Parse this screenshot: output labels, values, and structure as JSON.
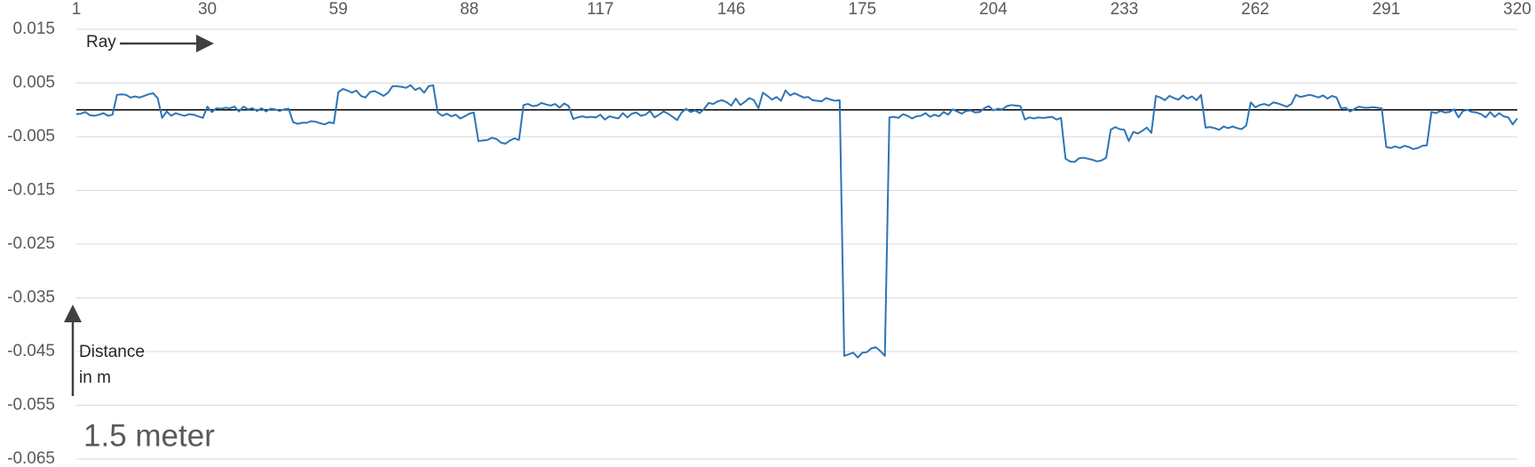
{
  "chart_data": {
    "type": "line",
    "annotations": [
      "Ray",
      "Distance",
      "in m",
      "1.5 meter"
    ],
    "color": "#2e75b6",
    "grid": true,
    "xlim": [
      1,
      320
    ],
    "xticks": [
      1,
      30,
      59,
      88,
      117,
      146,
      175,
      204,
      233,
      262,
      291,
      320
    ],
    "ylim": [
      -0.065,
      0.015
    ],
    "yticks": [
      0.015,
      0.005,
      -0.005,
      -0.015,
      -0.025,
      -0.035,
      -0.045,
      -0.055,
      -0.065
    ],
    "x": [
      1,
      2,
      3,
      4,
      5,
      6,
      7,
      8,
      9,
      10,
      11,
      12,
      13,
      14,
      15,
      16,
      17,
      18,
      19,
      20,
      21,
      22,
      23,
      24,
      25,
      26,
      27,
      28,
      29,
      30,
      31,
      32,
      33,
      34,
      35,
      36,
      37,
      38,
      39,
      40,
      41,
      42,
      43,
      44,
      45,
      46,
      47,
      48,
      49,
      50,
      51,
      52,
      53,
      54,
      55,
      56,
      57,
      58,
      59,
      60,
      61,
      62,
      63,
      64,
      65,
      66,
      67,
      68,
      69,
      70,
      71,
      72,
      73,
      74,
      75,
      76,
      77,
      78,
      79,
      80,
      81,
      82,
      83,
      84,
      85,
      86,
      87,
      88,
      89,
      90,
      91,
      92,
      93,
      94,
      95,
      96,
      97,
      98,
      99,
      100,
      101,
      102,
      103,
      104,
      105,
      106,
      107,
      108,
      109,
      110,
      111,
      112,
      113,
      114,
      115,
      116,
      117,
      118,
      119,
      120,
      121,
      122,
      123,
      124,
      125,
      126,
      127,
      128,
      129,
      130,
      131,
      132,
      133,
      134,
      135,
      136,
      137,
      138,
      139,
      140,
      141,
      142,
      143,
      144,
      145,
      146,
      147,
      148,
      149,
      150,
      151,
      152,
      153,
      154,
      155,
      156,
      157,
      158,
      159,
      160,
      161,
      162,
      163,
      164,
      165,
      166,
      167,
      168,
      169,
      170,
      171,
      172,
      173,
      174,
      175,
      176,
      177,
      178,
      179,
      180,
      181,
      182,
      183,
      184,
      185,
      186,
      187,
      188,
      189,
      190,
      191,
      192,
      193,
      194,
      195,
      196,
      197,
      198,
      199,
      200,
      201,
      202,
      203,
      204,
      205,
      206,
      207,
      208,
      209,
      210,
      211,
      212,
      213,
      214,
      215,
      216,
      217,
      218,
      219,
      220,
      221,
      222,
      223,
      224,
      225,
      226,
      227,
      228,
      229,
      230,
      231,
      232,
      233,
      234,
      235,
      236,
      237,
      238,
      239,
      240,
      241,
      242,
      243,
      244,
      245,
      246,
      247,
      248,
      249,
      250,
      251,
      252,
      253,
      254,
      255,
      256,
      257,
      258,
      259,
      260,
      261,
      262,
      263,
      264,
      265,
      266,
      267,
      268,
      269,
      270,
      271,
      272,
      273,
      274,
      275,
      276,
      277,
      278,
      279,
      280,
      281,
      282,
      283,
      284,
      285,
      286,
      287,
      288,
      289,
      290,
      291,
      292,
      293,
      294,
      295,
      296,
      297,
      298,
      299,
      300,
      301,
      302,
      303,
      304,
      305,
      306,
      307,
      308,
      309,
      310,
      311,
      312,
      313,
      314,
      315,
      316,
      317,
      318,
      319,
      320
    ],
    "values": [
      -0.0008,
      -0.0007,
      -0.0004,
      -0.001,
      -0.0011,
      -0.0009,
      -0.0006,
      -0.0011,
      -0.0009,
      0.0028,
      0.0029,
      0.0028,
      0.0023,
      0.0025,
      0.0023,
      0.0026,
      0.0029,
      0.0031,
      0.0022,
      -0.0015,
      -0.0003,
      -0.0011,
      -0.0006,
      -0.0009,
      -0.0011,
      -0.0008,
      -0.0009,
      -0.0012,
      -0.0015,
      0.0006,
      -0.0004,
      0.0003,
      0.0002,
      0.0004,
      0.0003,
      0.0006,
      -0.0003,
      0.0006,
      0.0001,
      0.0003,
      -0.0002,
      0.0003,
      -0.0003,
      0.0002,
      0.0001,
      -0.0002,
      0.0001,
      0.0002,
      -0.0023,
      -0.0026,
      -0.0024,
      -0.0024,
      -0.0021,
      -0.0022,
      -0.0025,
      -0.0027,
      -0.0023,
      -0.0025,
      0.0033,
      0.0039,
      0.0036,
      0.0032,
      0.0036,
      0.0026,
      0.0023,
      0.0033,
      0.0035,
      0.0031,
      0.0026,
      0.0032,
      0.0044,
      0.0044,
      0.0043,
      0.0041,
      0.0046,
      0.0037,
      0.0041,
      0.0032,
      0.0044,
      0.0046,
      -0.0005,
      -0.0011,
      -0.0007,
      -0.0012,
      -0.0009,
      -0.0016,
      -0.0012,
      -0.0007,
      -0.0005,
      -0.0058,
      -0.0057,
      -0.0056,
      -0.0052,
      -0.0054,
      -0.0061,
      -0.0063,
      -0.0057,
      -0.0053,
      -0.0056,
      0.0009,
      0.0011,
      0.0007,
      0.0008,
      0.0013,
      0.001,
      0.0008,
      0.0011,
      0.0004,
      0.0012,
      0.0007,
      -0.0017,
      -0.0014,
      -0.0012,
      -0.0014,
      -0.0013,
      -0.0014,
      -0.0009,
      -0.0018,
      -0.0012,
      -0.0014,
      -0.0016,
      -0.0006,
      -0.0014,
      -0.0007,
      -0.0005,
      -0.0011,
      -0.0009,
      -0.0002,
      -0.0014,
      -0.0009,
      -0.0003,
      -0.0007,
      -0.0013,
      -0.0019,
      -0.0005,
      0.0002,
      -0.0004,
      -0.0001,
      -0.0006,
      0.0002,
      0.0013,
      0.0011,
      0.0016,
      0.0018,
      0.0014,
      0.0008,
      0.0021,
      0.0009,
      0.0015,
      0.0022,
      0.0018,
      0.0003,
      0.0032,
      0.0026,
      0.0019,
      0.0024,
      0.0017,
      0.0036,
      0.0027,
      0.0031,
      0.0027,
      0.0023,
      0.0024,
      0.0018,
      0.0017,
      0.0016,
      0.0022,
      0.0019,
      0.0017,
      0.0018,
      -0.0458,
      -0.0455,
      -0.0452,
      -0.0461,
      -0.0452,
      -0.0451,
      -0.0444,
      -0.0442,
      -0.0449,
      -0.0458,
      -0.0014,
      -0.0013,
      -0.0015,
      -0.0008,
      -0.0011,
      -0.0016,
      -0.0012,
      -0.0011,
      -0.0006,
      -0.0013,
      -0.0009,
      -0.0012,
      -0.0004,
      -0.0009,
      0.0001,
      -0.0003,
      -0.0007,
      -0.0002,
      -0.0001,
      -0.0005,
      -0.0004,
      0.0003,
      0.0007,
      -0.0001,
      0.0002,
      0.0001,
      0.0007,
      0.0009,
      0.0008,
      0.0007,
      -0.0018,
      -0.0014,
      -0.0016,
      -0.0014,
      -0.0015,
      -0.0014,
      -0.0013,
      -0.0018,
      -0.0015,
      -0.0091,
      -0.0096,
      -0.0097,
      -0.009,
      -0.0089,
      -0.0091,
      -0.0093,
      -0.0096,
      -0.0094,
      -0.0089,
      -0.0037,
      -0.0032,
      -0.0036,
      -0.0037,
      -0.0058,
      -0.0041,
      -0.0044,
      -0.0039,
      -0.0033,
      -0.0043,
      0.0026,
      0.0023,
      0.0018,
      0.0026,
      0.0022,
      0.0019,
      0.0027,
      0.0021,
      0.0025,
      0.0018,
      0.0028,
      -0.0033,
      -0.0032,
      -0.0034,
      -0.0037,
      -0.0031,
      -0.0034,
      -0.0031,
      -0.0034,
      -0.0036,
      -0.0029,
      0.0014,
      0.0005,
      0.0009,
      0.0011,
      0.0008,
      0.0014,
      0.0012,
      0.0009,
      0.0006,
      0.0011,
      0.0028,
      0.0024,
      0.0026,
      0.0028,
      0.0026,
      0.0023,
      0.0027,
      0.0021,
      0.0026,
      0.0023,
      0.0003,
      0.0004,
      -0.0003,
      0.0002,
      0.0006,
      0.0004,
      0.0004,
      0.0005,
      0.0004,
      0.0003,
      -0.0069,
      -0.0071,
      -0.0068,
      -0.0071,
      -0.0067,
      -0.0069,
      -0.0073,
      -0.0071,
      -0.0067,
      -0.0066,
      -0.0004,
      -0.0006,
      -0.0002,
      -0.0005,
      -0.0004,
      0.0001,
      -0.0014,
      -0.0002,
      0,
      -0.0004,
      -0.0005,
      -0.0008,
      -0.0014,
      -0.0004,
      -0.0013,
      -0.0006,
      -0.0012,
      -0.0014,
      -0.0027,
      -0.0016
    ]
  }
}
